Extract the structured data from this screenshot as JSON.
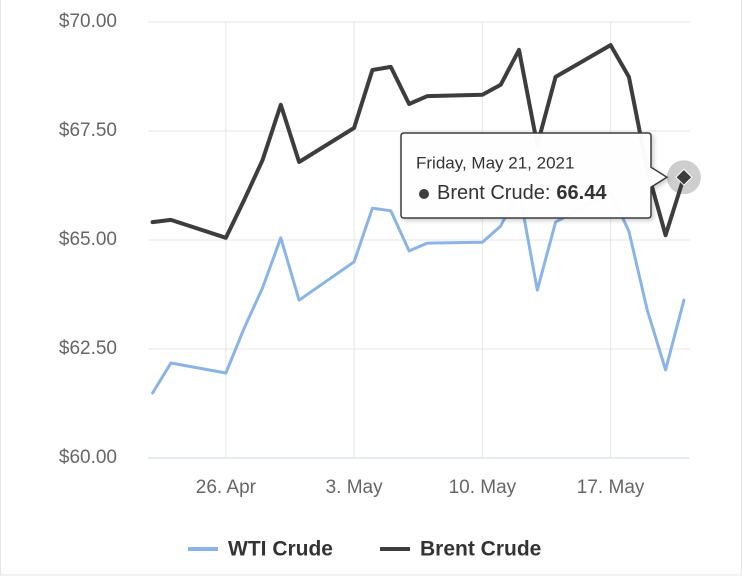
{
  "chart_data": {
    "type": "line",
    "x": [
      "2021-04-22",
      "2021-04-23",
      "2021-04-26",
      "2021-04-27",
      "2021-04-28",
      "2021-04-29",
      "2021-04-30",
      "2021-05-03",
      "2021-05-04",
      "2021-05-05",
      "2021-05-06",
      "2021-05-07",
      "2021-05-10",
      "2021-05-11",
      "2021-05-12",
      "2021-05-13",
      "2021-05-14",
      "2021-05-17",
      "2021-05-18",
      "2021-05-19",
      "2021-05-20",
      "2021-05-21"
    ],
    "series": [
      {
        "name": "WTI Crude",
        "color": "#8ab4e6",
        "values": [
          61.49,
          62.18,
          61.95,
          62.98,
          63.9,
          65.05,
          63.62,
          64.5,
          65.73,
          65.67,
          64.75,
          64.93,
          64.95,
          65.32,
          66.15,
          63.85,
          65.41,
          66.1,
          65.2,
          63.39,
          62.02,
          63.62
        ]
      },
      {
        "name": "Brent Crude",
        "color": "#3d3d3f",
        "values": [
          65.41,
          65.46,
          65.05,
          65.92,
          66.83,
          68.1,
          66.79,
          67.57,
          68.9,
          68.97,
          68.12,
          68.3,
          68.33,
          68.56,
          69.36,
          67.18,
          68.74,
          69.47,
          68.74,
          66.61,
          65.11,
          66.44
        ]
      }
    ],
    "xlim": [
      "2021-04-21T18:00:00",
      "2021-05-21T08:00:00"
    ],
    "xticks": [
      {
        "value": "2021-04-26",
        "label": "26. Apr"
      },
      {
        "value": "2021-05-03",
        "label": "3. May"
      },
      {
        "value": "2021-05-10",
        "label": "10. May"
      },
      {
        "value": "2021-05-17",
        "label": "17. May"
      }
    ],
    "ylim": [
      60,
      70
    ],
    "yticks": [
      {
        "value": 60,
        "label": "$60.00"
      },
      {
        "value": 62.5,
        "label": "$62.50"
      },
      {
        "value": 65,
        "label": "$65.00"
      },
      {
        "value": 67.5,
        "label": "$67.50"
      },
      {
        "value": 70,
        "label": "$70.00"
      }
    ],
    "grid": true,
    "legend": "bottom",
    "tooltip": {
      "title": "Friday, May 21, 2021",
      "label": "Brent Crude:",
      "series": 1,
      "index": 21
    }
  }
}
